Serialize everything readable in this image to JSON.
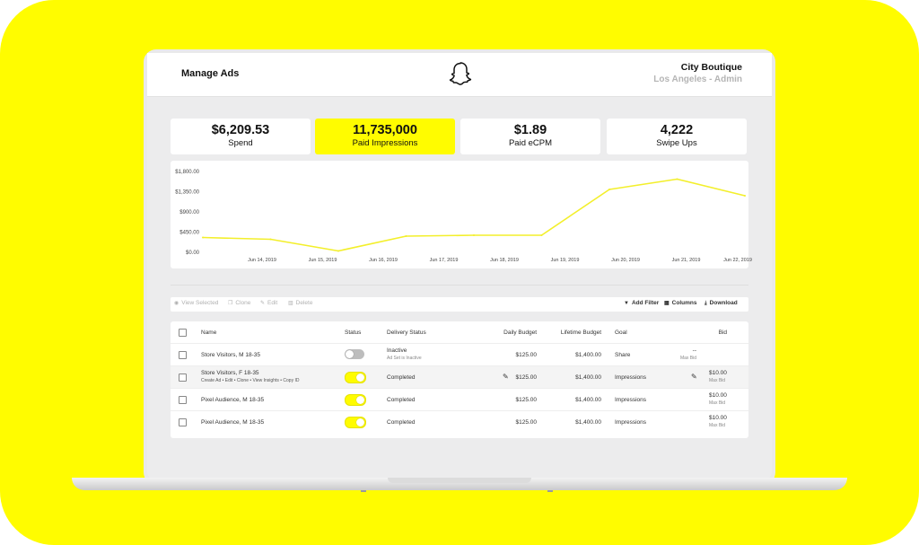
{
  "colors": {
    "brand": "#FFFC00",
    "chart_line": "#f3ef2b"
  },
  "header": {
    "title": "Manage Ads",
    "logo_icon": "snapchat-ghost-icon",
    "account_name": "City Boutique",
    "account_sub": "Los Angeles - Admin"
  },
  "stats": [
    {
      "value": "$6,209.53",
      "label": "Spend",
      "active": false
    },
    {
      "value": "11,735,000",
      "label": "Paid Impressions",
      "active": true
    },
    {
      "value": "$1.89",
      "label": "Paid eCPM",
      "active": false
    },
    {
      "value": "4,222",
      "label": "Swipe Ups",
      "active": false
    }
  ],
  "chart_data": {
    "type": "line",
    "y_tick_labels": [
      "$1,800.00",
      "$1,350.00",
      "$900.00",
      "$450.00",
      "$0.00"
    ],
    "y_ticks": [
      1800,
      1350,
      900,
      450,
      0
    ],
    "ylim": [
      0,
      1800
    ],
    "x_tick_labels": [
      "Jun 14, 2019",
      "Jun 15, 2019",
      "Jun 16, 2019",
      "Jun 17, 2019",
      "Jun 18, 2019",
      "Jun 19, 2019",
      "Jun 20, 2019",
      "Jun 21, 2019",
      "Jun 22, 2019"
    ],
    "series": [
      {
        "values": [
          330,
          290,
          30,
          360,
          380,
          380,
          1400,
          1630,
          1260
        ]
      }
    ],
    "grid": false
  },
  "toolbar": {
    "view_selected": "View Selected",
    "clone": "Clone",
    "edit": "Edit",
    "delete": "Delete",
    "add_filter": "Add Filter",
    "columns": "Columns",
    "download": "Download"
  },
  "table": {
    "headers": {
      "name": "Name",
      "status": "Status",
      "delivery": "Delivery Status",
      "daily": "Daily Budget",
      "lifetime": "Lifetime Budget",
      "goal": "Goal",
      "bid": "Bid"
    },
    "rows": [
      {
        "name": "Store Visitors, M 18-35",
        "actions": "",
        "status_on": false,
        "delivery": "Inactive",
        "delivery_sub": "Ad Set is Inactive",
        "daily": "$125.00",
        "lifetime": "$1,400.00",
        "goal": "Share",
        "bid": "--",
        "bid_sub": "Max Bid"
      },
      {
        "name": "Store Visitors, F 18-35",
        "actions": "Create Ad  •  Edit  •  Clone  •  View Insights  •  Copy ID",
        "status_on": true,
        "delivery": "Completed",
        "delivery_sub": "",
        "daily": "$125.00",
        "lifetime": "$1,400.00",
        "goal": "Impressions",
        "bid": "$10.00",
        "bid_sub": "Max Bid"
      },
      {
        "name": "Pixel Audience, M 18-35",
        "actions": "",
        "status_on": true,
        "delivery": "Completed",
        "delivery_sub": "",
        "daily": "$125.00",
        "lifetime": "$1,400.00",
        "goal": "Impressions",
        "bid": "$10.00",
        "bid_sub": "Max Bid"
      },
      {
        "name": "Pixel Audience, M 18-35",
        "actions": "",
        "status_on": true,
        "delivery": "Completed",
        "delivery_sub": "",
        "daily": "$125.00",
        "lifetime": "$1,400.00",
        "goal": "Impressions",
        "bid": "$10.00",
        "bid_sub": "Max Bid"
      }
    ]
  }
}
